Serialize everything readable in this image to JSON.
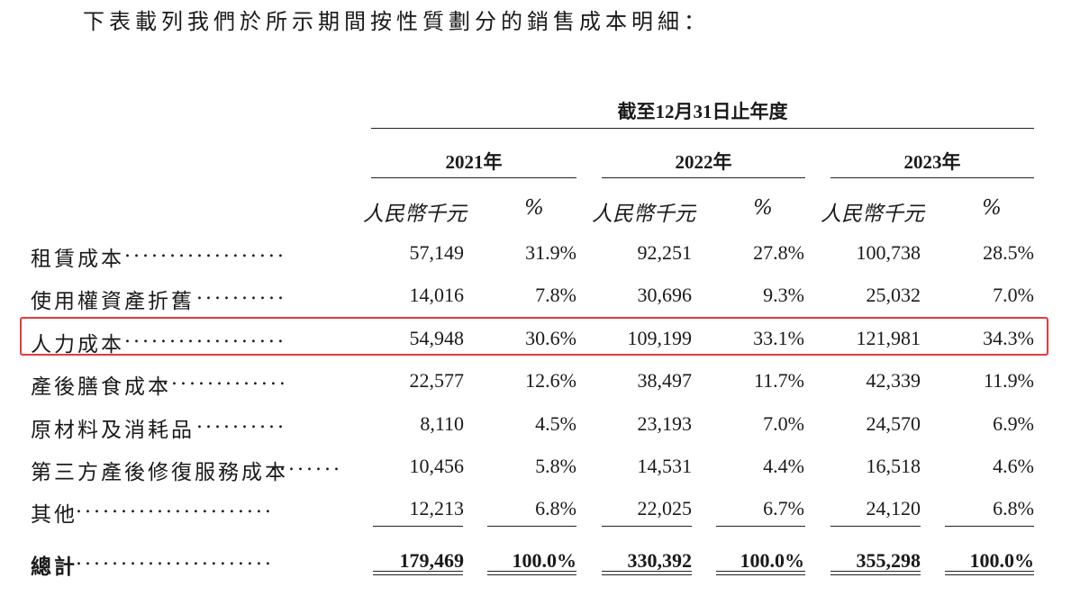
{
  "intro_text": "下表載列我們於所示期間按性質劃分的銷售成本明細：",
  "period_header": "截至12月31日止年度",
  "years": [
    "2021年",
    "2022年",
    "2023年"
  ],
  "unit_amount": "人民幣千元",
  "unit_pct": "%",
  "rows": [
    {
      "label": "租賃成本",
      "dots": "..................",
      "values": [
        "57,149",
        "31.9%",
        "92,251",
        "27.8%",
        "100,738",
        "28.5%"
      ]
    },
    {
      "label": "使用權資產折舊",
      "dots": "..........",
      "values": [
        "14,016",
        "7.8%",
        "30,696",
        "9.3%",
        "25,032",
        "7.0%"
      ]
    },
    {
      "label": "人力成本",
      "dots": "..................",
      "values": [
        "54,948",
        "30.6%",
        "109,199",
        "33.1%",
        "121,981",
        "34.3%"
      ]
    },
    {
      "label": "產後膳食成本",
      "dots": "..............",
      "values": [
        "22,577",
        "12.6%",
        "38,497",
        "11.7%",
        "42,339",
        "11.9%"
      ]
    },
    {
      "label": "原材料及消耗品",
      "dots": "..........",
      "values": [
        "8,110",
        "4.5%",
        "23,193",
        "7.0%",
        "24,570",
        "6.9%"
      ]
    },
    {
      "label": "第三方產後修復服務成本",
      "dots": "........",
      "values": [
        "10,456",
        "5.8%",
        "14,531",
        "4.4%",
        "16,518",
        "4.6%"
      ]
    },
    {
      "label": "其他",
      "dots": "......................",
      "values": [
        "12,213",
        "6.8%",
        "22,025",
        "6.7%",
        "24,120",
        "6.8%"
      ]
    }
  ],
  "total": {
    "label": "總計",
    "dots": "......................",
    "values": [
      "179,469",
      "100.0%",
      "330,392",
      "100.0%",
      "355,298",
      "100.0%"
    ]
  },
  "highlight_color": "#e43b3b"
}
